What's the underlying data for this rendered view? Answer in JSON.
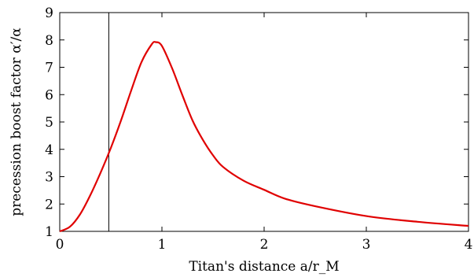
{
  "chart_data": {
    "type": "line",
    "xlabel": "Titan's distance a/r_M",
    "ylabel": "precession boost factor α′/α",
    "xlim": [
      0,
      4
    ],
    "ylim": [
      1,
      9
    ],
    "x_ticks": [
      "0",
      "1",
      "2",
      "3",
      "4"
    ],
    "y_ticks": [
      "1",
      "2",
      "3",
      "4",
      "5",
      "6",
      "7",
      "8",
      "9"
    ],
    "grid": false,
    "series": [
      {
        "color": "#e00000",
        "x": [
          0,
          0.1,
          0.2,
          0.3,
          0.4,
          0.5,
          0.6,
          0.7,
          0.8,
          0.9,
          0.94,
          1.0,
          1.1,
          1.2,
          1.3,
          1.4,
          1.5,
          1.6,
          1.8,
          2.0,
          2.2,
          2.5,
          3.0,
          3.5,
          4.0
        ],
        "y": [
          1.0,
          1.17,
          1.63,
          2.33,
          3.15,
          4.05,
          5.06,
          6.16,
          7.19,
          7.84,
          7.92,
          7.78,
          6.96,
          5.98,
          5.05,
          4.35,
          3.78,
          3.35,
          2.85,
          2.52,
          2.2,
          1.92,
          1.56,
          1.35,
          1.2
        ]
      }
    ],
    "annotations": [
      {
        "type": "vertical-line",
        "x": 0.48,
        "color": "#000000"
      }
    ]
  }
}
